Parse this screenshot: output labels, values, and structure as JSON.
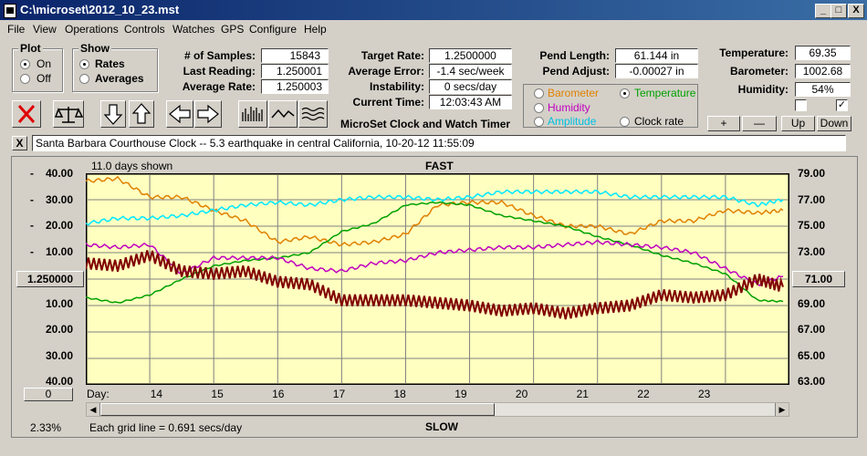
{
  "window": {
    "title": "C:\\microset\\2012_10_23.mst",
    "min": "_",
    "max": "□",
    "close": "X"
  },
  "menu": [
    "File",
    "View",
    "Operations",
    "Controls",
    "Watches",
    "GPS",
    "Configure",
    "Help"
  ],
  "plot": {
    "title": "Plot",
    "on": "On",
    "off": "Off",
    "selected": "On"
  },
  "show": {
    "title": "Show",
    "rates": "Rates",
    "averages": "Averages",
    "selected": "Rates"
  },
  "stats": {
    "samples_label": "# of Samples:",
    "samples": "15843",
    "last_label": "Last Reading:",
    "last": "1.250001",
    "avg_label": "Average Rate:",
    "avg": "1.250003"
  },
  "rates": {
    "target_label": "Target Rate:",
    "target": "1.2500000",
    "err_label": "Average Error:",
    "err": "-1.4 sec/week",
    "inst_label": "Instability:",
    "inst": "0 secs/day",
    "time_label": "Current Time:",
    "time": "12:03:43 AM"
  },
  "pend": {
    "len_label": "Pend Length:",
    "len": "61.144 in",
    "adj_label": "Pend Adjust:",
    "adj": "-0.00027 in"
  },
  "env": {
    "temp_label": "Temperature:",
    "temp": "69.35",
    "baro_label": "Barometer:",
    "baro": "1002.68",
    "hum_label": "Humidity:",
    "hum": "54%"
  },
  "sensors": {
    "barometer": "Barometer",
    "temperature": "Temperature",
    "humidity": "Humidity",
    "amplitude": "Amplitude",
    "clockrate": "Clock rate",
    "selected": "Temperature",
    "colors": {
      "barometer": "#e08000",
      "temperature": "#00a000",
      "humidity": "#c000c0",
      "amplitude": "#00c0e0",
      "clockrate": "#000000"
    }
  },
  "scale_buttons": {
    "plus": "+",
    "minus": "—",
    "up": "Up",
    "down": "Down"
  },
  "app_caption": "MicroSet Clock and Watch Timer",
  "note": {
    "close": "X",
    "text": "Santa Barbara Courthouse Clock  --  5.3 earthquake in central California, 10-20-12 11:55:09"
  },
  "chart": {
    "days_shown": "11.0 days shown",
    "fast_label": "FAST",
    "slow_label": "SLOW",
    "day_label": "Day:",
    "grid_note": "Each grid line = 0.691 secs/day",
    "percent": "2.33%",
    "left_center_value": "1.250000",
    "left_bottom_value": "0",
    "right_center_value": "71.00",
    "left_ticks": [
      "40.00",
      "30.00",
      "20.00",
      "10.00",
      "",
      "10.00",
      "20.00",
      "30.00",
      "40.00"
    ],
    "left_tick_dash": [
      "-",
      "-",
      "-",
      "-",
      "",
      "",
      "",
      "",
      ""
    ],
    "right_ticks": [
      "79.00",
      "77.00",
      "75.00",
      "73.00",
      "",
      "69.00",
      "67.00",
      "65.00",
      "63.00"
    ],
    "day_ticks": [
      "14",
      "15",
      "16",
      "17",
      "18",
      "19",
      "20",
      "21",
      "22",
      "23"
    ]
  },
  "chart_data": {
    "type": "line",
    "title": "FAST",
    "xlabel": "Day:",
    "x_range": [
      13.0,
      24.0
    ],
    "y_left_range": [
      -40,
      40
    ],
    "y_right_range": [
      63,
      79
    ],
    "grid": true,
    "series": [
      {
        "name": "Barometer",
        "color": "#e08000",
        "axis": "left",
        "x": [
          13.0,
          13.5,
          14.0,
          14.5,
          15.0,
          15.5,
          16.0,
          16.5,
          17.0,
          17.5,
          18.0,
          18.5,
          19.0,
          19.5,
          20.0,
          20.5,
          21.0,
          21.5,
          22.0,
          22.5,
          23.0,
          23.5,
          23.9
        ],
        "y": [
          37,
          38,
          31,
          31,
          26,
          22,
          14,
          16,
          13,
          14,
          17,
          28,
          29,
          29,
          24,
          20,
          20,
          17,
          22,
          22,
          26,
          25,
          26
        ]
      },
      {
        "name": "Temperature",
        "color": "#00a000",
        "axis": "right",
        "x": [
          13.0,
          13.5,
          14.0,
          14.5,
          15.0,
          15.5,
          16.0,
          16.5,
          17.0,
          17.5,
          18.0,
          18.5,
          19.0,
          19.5,
          20.0,
          20.5,
          21.0,
          21.5,
          22.0,
          22.5,
          23.0,
          23.5,
          23.9
        ],
        "y": [
          69.6,
          69.2,
          69.8,
          71.0,
          72.0,
          72.4,
          72.6,
          73.0,
          74.6,
          75.2,
          76.6,
          76.8,
          76.6,
          75.8,
          75.4,
          75.0,
          74.2,
          73.6,
          72.8,
          72.2,
          71.4,
          69.4,
          69.3
        ]
      },
      {
        "name": "Humidity",
        "color": "#c000c0",
        "axis": "left",
        "x": [
          13.0,
          13.5,
          14.0,
          14.5,
          15.0,
          15.5,
          16.0,
          16.5,
          17.0,
          17.5,
          18.0,
          18.5,
          19.0,
          19.5,
          20.0,
          20.5,
          21.0,
          21.5,
          22.0,
          22.5,
          23.0,
          23.5,
          23.9
        ],
        "y": [
          13,
          12,
          13,
          2,
          8,
          8,
          8,
          4,
          3,
          6,
          7,
          10,
          11,
          12,
          12,
          13,
          14,
          13,
          12,
          10,
          4,
          -2,
          1
        ]
      },
      {
        "name": "Amplitude",
        "color": "#00e8ff",
        "axis": "left",
        "x": [
          13.0,
          13.5,
          14.0,
          14.5,
          15.0,
          15.5,
          16.0,
          16.5,
          17.0,
          17.5,
          18.0,
          18.5,
          19.0,
          19.5,
          20.0,
          20.5,
          21.0,
          21.5,
          22.0,
          22.5,
          23.0,
          23.5,
          23.9
        ],
        "y": [
          21,
          23,
          23,
          24,
          26,
          28,
          29,
          28,
          30,
          31,
          31,
          30,
          31,
          33,
          33,
          33,
          33,
          31,
          31,
          31,
          31,
          28,
          30
        ]
      },
      {
        "name": "Clock rate",
        "color": "#800000",
        "axis": "left",
        "x": [
          13.0,
          13.5,
          14.0,
          14.5,
          15.0,
          15.5,
          16.0,
          16.5,
          17.0,
          17.5,
          18.0,
          18.5,
          19.0,
          19.5,
          20.0,
          20.5,
          21.0,
          21.5,
          22.0,
          22.5,
          23.0,
          23.5,
          23.9
        ],
        "y": [
          6,
          5,
          9,
          3,
          2,
          3,
          -1,
          -2,
          -8,
          -8,
          -8,
          -9,
          -10,
          -12,
          -11,
          -13,
          -11,
          -10,
          -6,
          -7,
          -6,
          0,
          -3
        ]
      }
    ]
  }
}
